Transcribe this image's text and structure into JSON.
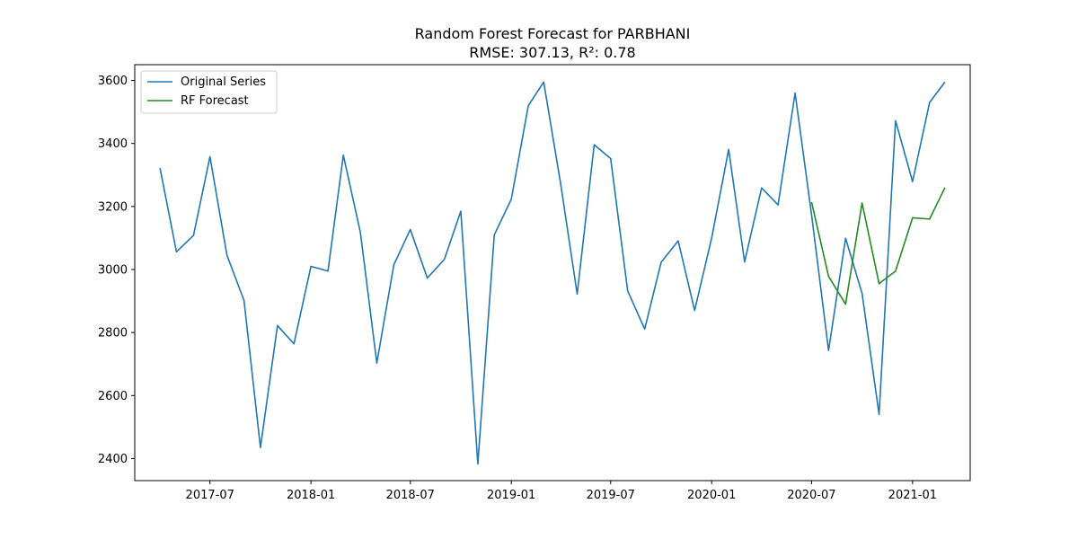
{
  "chart_data": {
    "type": "line",
    "title": "Random Forest Forecast for PARBHANI",
    "subtitle": "RMSE: 307.13, R²: 0.78",
    "xlabel": "",
    "ylabel": "",
    "xlim": [
      "2017-02-14",
      "2021-04-16"
    ],
    "ylim": [
      2330,
      3650
    ],
    "x_ticks": [
      "2017-07-01",
      "2018-01-01",
      "2018-07-01",
      "2019-01-01",
      "2019-07-01",
      "2020-01-01",
      "2020-07-01",
      "2021-01-01"
    ],
    "x_tick_labels": [
      "2017-07",
      "2018-01",
      "2018-07",
      "2019-01",
      "2019-07",
      "2020-01",
      "2020-07",
      "2021-01"
    ],
    "y_ticks": [
      2400,
      2600,
      2800,
      3000,
      3200,
      3400,
      3600
    ],
    "y_tick_labels": [
      "2400",
      "2600",
      "2800",
      "3000",
      "3200",
      "3400",
      "3600"
    ],
    "grid": false,
    "legend_position": "top-left",
    "series": [
      {
        "name": "Original Series",
        "color": "#1f77b4",
        "x": [
          "2017-04-01",
          "2017-05-01",
          "2017-06-01",
          "2017-07-01",
          "2017-08-01",
          "2017-09-01",
          "2017-10-01",
          "2017-11-01",
          "2017-12-01",
          "2018-01-01",
          "2018-02-01",
          "2018-03-01",
          "2018-04-01",
          "2018-05-01",
          "2018-06-01",
          "2018-07-01",
          "2018-08-01",
          "2018-09-01",
          "2018-10-01",
          "2018-11-01",
          "2018-12-01",
          "2019-01-01",
          "2019-02-01",
          "2019-03-01",
          "2019-04-01",
          "2019-05-01",
          "2019-06-01",
          "2019-07-01",
          "2019-08-01",
          "2019-09-01",
          "2019-10-01",
          "2019-11-01",
          "2019-12-01",
          "2020-01-01",
          "2020-02-01",
          "2020-03-01",
          "2020-04-01",
          "2020-05-01",
          "2020-06-01",
          "2020-07-01",
          "2020-08-01",
          "2020-09-01",
          "2020-10-01",
          "2020-11-01",
          "2020-12-01",
          "2021-01-01",
          "2021-02-01",
          "2021-03-01"
        ],
        "values": [
          3322,
          3056,
          3108,
          3358,
          3045,
          2902,
          2435,
          2822,
          2764,
          3010,
          2995,
          3363,
          3118,
          2703,
          3015,
          3127,
          2973,
          3032,
          3185,
          2383,
          3110,
          3223,
          3520,
          3595,
          3271,
          2922,
          3396,
          3352,
          2932,
          2811,
          3023,
          3091,
          2870,
          3100,
          3381,
          3024,
          3259,
          3205,
          3560,
          3174,
          2743,
          3099,
          2924,
          2540,
          3472,
          3279,
          3530,
          3595
        ]
      },
      {
        "name": "RF Forecast",
        "color": "#228b22",
        "x": [
          "2020-07-01",
          "2020-08-01",
          "2020-09-01",
          "2020-10-01",
          "2020-11-01",
          "2020-12-01",
          "2021-01-01",
          "2021-02-01",
          "2021-03-01"
        ],
        "values": [
          3214,
          2978,
          2890,
          3211,
          2955,
          2995,
          3164,
          3160,
          3260
        ]
      }
    ]
  }
}
